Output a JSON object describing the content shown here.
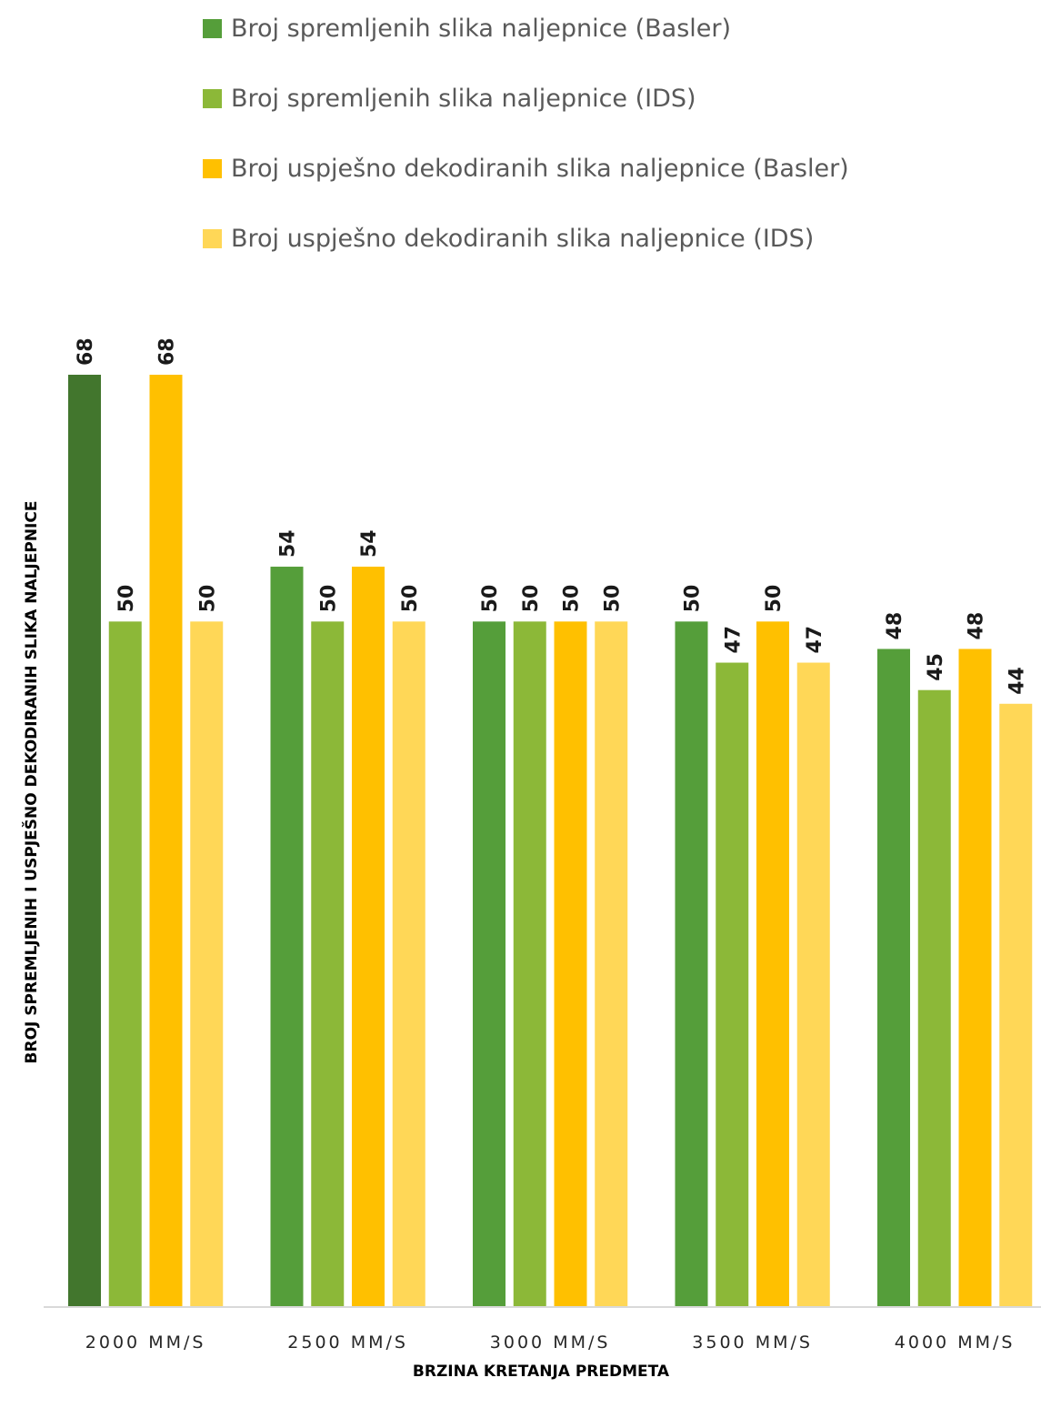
{
  "chart_data": {
    "type": "bar",
    "title": "",
    "xlabel": "BRZINA KRETANJA PREDMETA",
    "ylabel": "BROJ SPREMLJENIH I USPJEŠNO DEKODIRANIH SLIKA NALJEPNICE",
    "categories": [
      "2000 MM/S",
      "2500 MM/S",
      "3000 MM/S",
      "3500 MM/S",
      "4000 MM/S"
    ],
    "series": [
      {
        "name": "Broj spremljenih slika naljepnice (Basler)",
        "values": [
          68,
          54,
          50,
          50,
          48
        ],
        "color": "#559E3A"
      },
      {
        "name": "Broj spremljenih slika naljepnice (IDS)",
        "values": [
          50,
          50,
          50,
          47,
          45
        ],
        "color": "#8CB838"
      },
      {
        "name": "Broj uspješno dekodiranih slika naljepnice (Basler)",
        "values": [
          68,
          54,
          50,
          50,
          48
        ],
        "color": "#FFC000"
      },
      {
        "name": "Broj uspješno dekodiranih slika naljepnice (IDS)",
        "values": [
          50,
          50,
          50,
          47,
          44
        ],
        "color": "#FFD757"
      }
    ],
    "highlight": {
      "series": 0,
      "category": 0,
      "color": "#42762D"
    },
    "ylim": [
      0,
      68
    ],
    "grid": false,
    "legend_position": "top",
    "data_labels": true
  }
}
